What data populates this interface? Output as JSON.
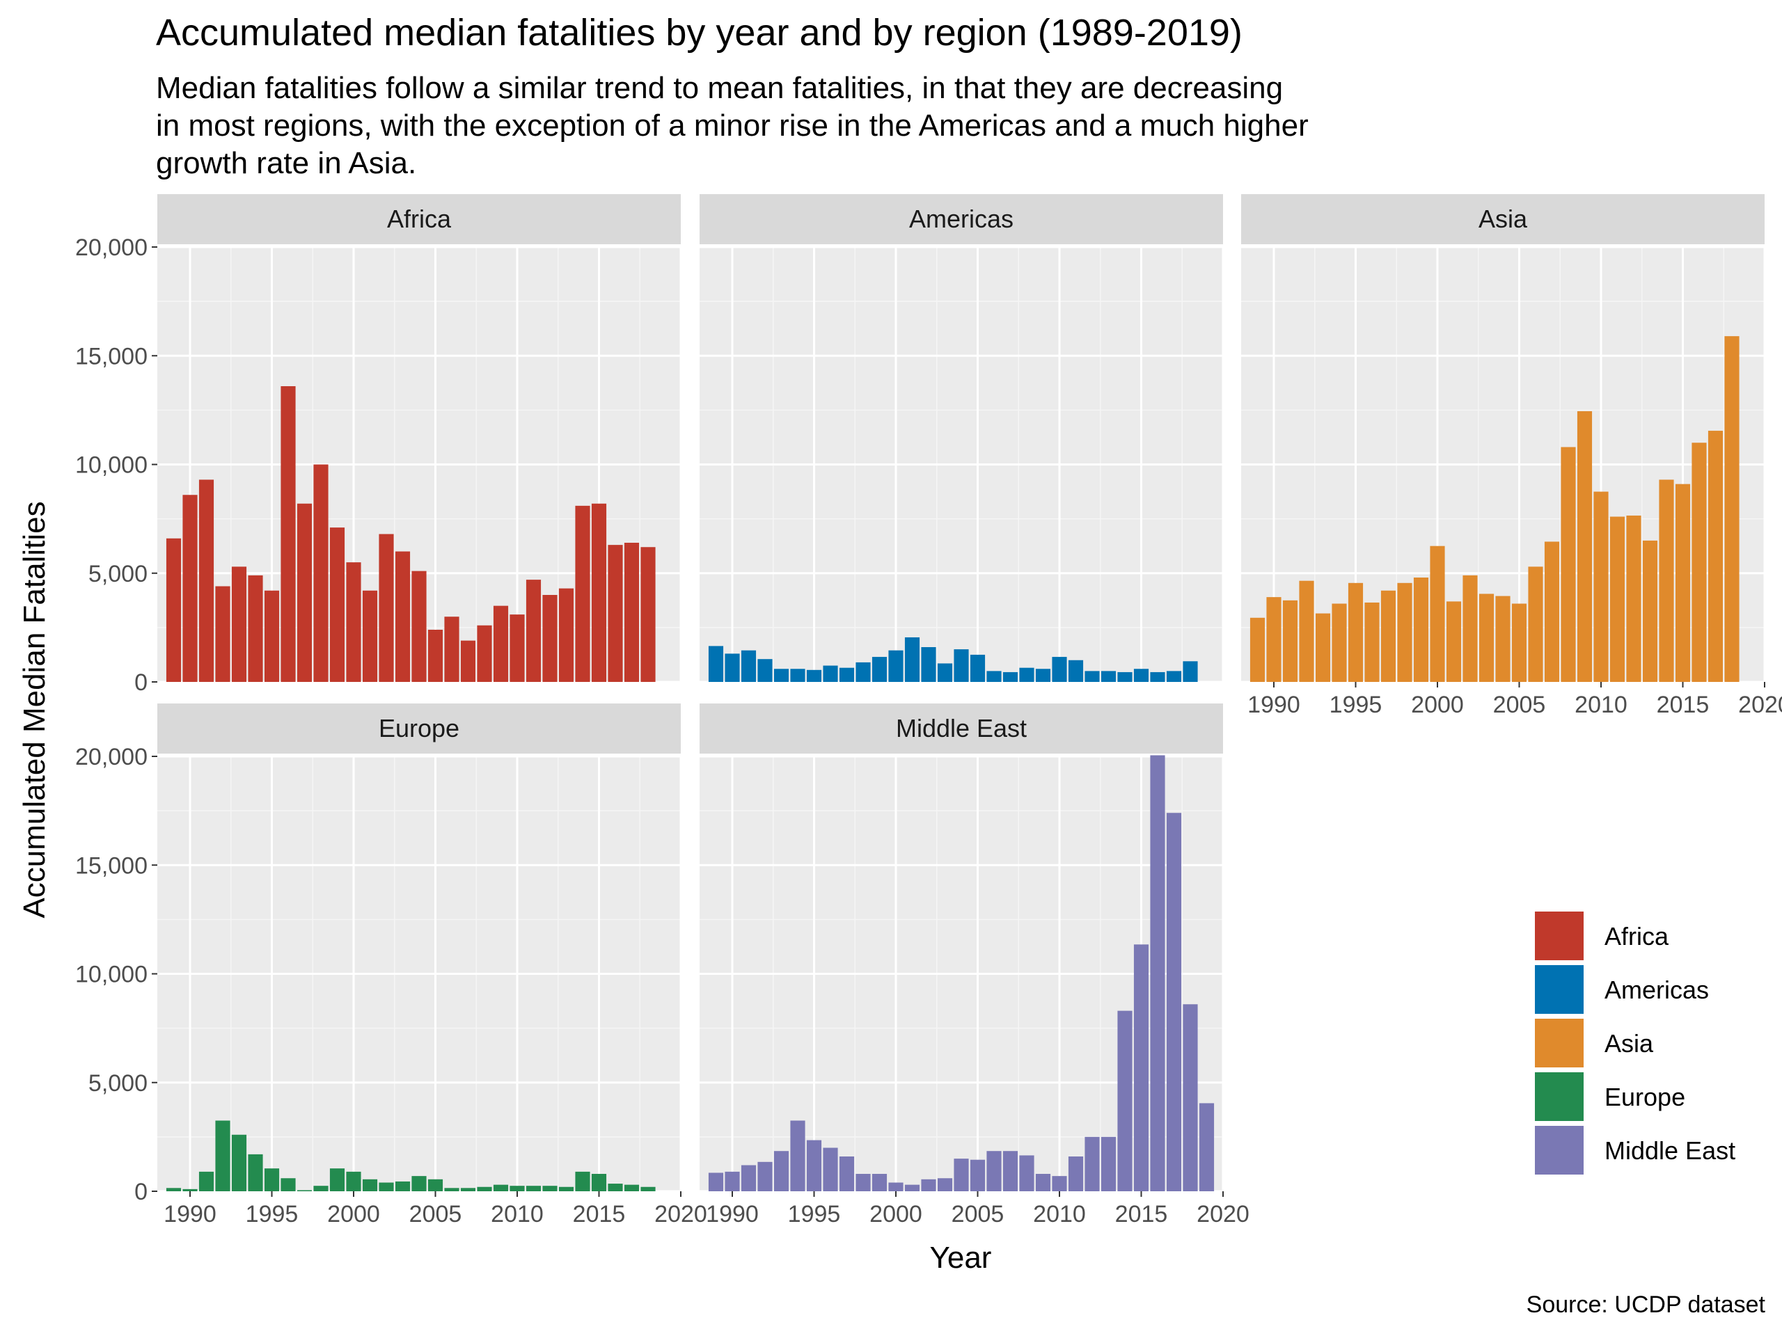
{
  "title": "Accumulated median fatalities by year and by region (1989-2019)",
  "subtitle": "Median fatalities follow a similar trend to mean fatalities, in that they are decreasing\nin most regions, with the exception of a minor rise in the Americas and a much higher\ngrowth rate in Asia.",
  "caption": "Source: UCDP dataset",
  "colors": {
    "Africa": "#c0392b",
    "Americas": "#0072b2",
    "Asia": "#e08a2c",
    "Europe": "#238b4f",
    "Middle East": "#7a78b4"
  },
  "chart_data": {
    "type": "bar",
    "facet": "region",
    "xlabel": "Year",
    "ylabel": "Accumulated Median Fatalities",
    "ylim": [
      0,
      20000
    ],
    "yticks": [
      0,
      5000,
      10000,
      15000,
      20000
    ],
    "ytick_labels": [
      "0",
      "5,000",
      "10,000",
      "15,000",
      "20,000"
    ],
    "xlim": [
      1988,
      2020
    ],
    "xticks": [
      1990,
      1995,
      2000,
      2005,
      2010,
      2015,
      2020
    ],
    "xtick_labels": [
      "1990",
      "1995",
      "2000",
      "2005",
      "2010",
      "2015",
      "2020"
    ],
    "grid": true,
    "legend_position": "right",
    "legend_entries": [
      "Africa",
      "Americas",
      "Asia",
      "Europe",
      "Middle East"
    ],
    "series": [
      {
        "name": "Africa",
        "x": [
          1989,
          1990,
          1991,
          1992,
          1993,
          1994,
          1995,
          1996,
          1997,
          1998,
          1999,
          2000,
          2001,
          2002,
          2003,
          2004,
          2005,
          2006,
          2007,
          2008,
          2009,
          2010,
          2011,
          2012,
          2013,
          2014,
          2015,
          2016,
          2017,
          2018
        ],
        "values": [
          6600,
          8600,
          9300,
          4400,
          5300,
          4900,
          4200,
          13600,
          8200,
          10000,
          7100,
          5500,
          4200,
          6800,
          6000,
          5100,
          2400,
          3000,
          1900,
          2600,
          3500,
          3100,
          4700,
          4000,
          4300,
          8100,
          8200,
          6300,
          6400,
          6200
        ]
      },
      {
        "name": "Americas",
        "x": [
          1989,
          1990,
          1991,
          1992,
          1993,
          1994,
          1995,
          1996,
          1997,
          1998,
          1999,
          2000,
          2001,
          2002,
          2003,
          2004,
          2005,
          2006,
          2007,
          2008,
          2009,
          2010,
          2011,
          2012,
          2013,
          2014,
          2015,
          2016,
          2017,
          2018
        ],
        "values": [
          1650,
          1300,
          1450,
          1050,
          600,
          600,
          550,
          750,
          650,
          900,
          1150,
          1450,
          2050,
          1600,
          850,
          1500,
          1250,
          500,
          450,
          650,
          600,
          1150,
          1000,
          500,
          500,
          450,
          600,
          450,
          500,
          950
        ]
      },
      {
        "name": "Asia",
        "x": [
          1989,
          1990,
          1991,
          1992,
          1993,
          1994,
          1995,
          1996,
          1997,
          1998,
          1999,
          2000,
          2001,
          2002,
          2003,
          2004,
          2005,
          2006,
          2007,
          2008,
          2009,
          2010,
          2011,
          2012,
          2013,
          2014,
          2015,
          2016,
          2017,
          2018
        ],
        "values": [
          2950,
          3900,
          3750,
          4650,
          3150,
          3600,
          4550,
          3650,
          4200,
          4550,
          4800,
          6250,
          3700,
          4900,
          4050,
          3950,
          3600,
          5300,
          6450,
          10800,
          12450,
          8750,
          7600,
          7650,
          6500,
          9300,
          9100,
          11000,
          11550,
          15900
        ]
      },
      {
        "name": "Europe",
        "x": [
          1989,
          1990,
          1991,
          1992,
          1993,
          1994,
          1995,
          1996,
          1997,
          1998,
          1999,
          2000,
          2001,
          2002,
          2003,
          2004,
          2005,
          2006,
          2007,
          2008,
          2009,
          2010,
          2011,
          2012,
          2013,
          2014,
          2015,
          2016,
          2017,
          2018
        ],
        "values": [
          150,
          100,
          900,
          3250,
          2600,
          1700,
          1050,
          600,
          50,
          250,
          1050,
          900,
          550,
          400,
          450,
          700,
          550,
          150,
          150,
          200,
          300,
          250,
          250,
          250,
          200,
          900,
          800,
          350,
          300,
          200
        ]
      },
      {
        "name": "Middle East",
        "x": [
          1989,
          1990,
          1991,
          1992,
          1993,
          1994,
          1995,
          1996,
          1997,
          1998,
          1999,
          2000,
          2001,
          2002,
          2003,
          2004,
          2005,
          2006,
          2007,
          2008,
          2009,
          2010,
          2011,
          2012,
          2013,
          2014,
          2015,
          2016,
          2017,
          2018,
          2019
        ],
        "values": [
          850,
          900,
          1200,
          1350,
          1850,
          3250,
          2350,
          2000,
          1600,
          800,
          800,
          400,
          300,
          550,
          600,
          1500,
          1450,
          1850,
          1850,
          1650,
          800,
          700,
          1600,
          2500,
          2500,
          8300,
          11350,
          20050,
          17400,
          8600,
          4050
        ]
      }
    ]
  }
}
